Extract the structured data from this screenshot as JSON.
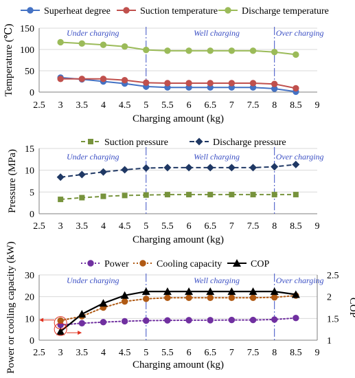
{
  "charts": [
    {
      "id": "temperature",
      "type": "line",
      "xlabel": "Charging amount (kg)",
      "ylabel": "Temperature (℃)",
      "xlim": [
        2.5,
        9
      ],
      "x_ticks": [
        "2.5",
        "3",
        "3.5",
        "4",
        "4.5",
        "5",
        "5.5",
        "6",
        "6.5",
        "7",
        "7.5",
        "8",
        "8.5",
        "9"
      ],
      "ylim": [
        0,
        150
      ],
      "y_ticks": [
        "0",
        "50",
        "100",
        "150"
      ],
      "zones": [
        "Under charging",
        "Well charging",
        "Over charging"
      ],
      "zone_boundaries": [
        5,
        8
      ],
      "series": [
        {
          "name": "Superheat degree",
          "color": "#4472c4",
          "marker": "circle",
          "x": [
            3,
            3.5,
            4,
            4.5,
            5,
            5.5,
            6,
            6.5,
            7,
            7.5,
            8,
            8.5
          ],
          "y": [
            34,
            30,
            25,
            20,
            13,
            11,
            11,
            11,
            11,
            11,
            8,
            1
          ]
        },
        {
          "name": "Suction temperature",
          "color": "#c0504d",
          "marker": "circle",
          "x": [
            3,
            3.5,
            4,
            4.5,
            5,
            5.5,
            6,
            6.5,
            7,
            7.5,
            8,
            8.5
          ],
          "y": [
            31,
            31,
            31,
            28,
            22,
            21,
            21,
            21,
            21,
            21,
            19,
            9
          ]
        },
        {
          "name": "Discharge temperature",
          "color": "#9bbb59",
          "marker": "circle",
          "x": [
            3,
            3.5,
            4,
            4.5,
            5,
            5.5,
            6,
            6.5,
            7,
            7.5,
            8,
            8.5
          ],
          "y": [
            117,
            114,
            111,
            107,
            99,
            97,
            97,
            97,
            97,
            97,
            94,
            88
          ]
        }
      ]
    },
    {
      "id": "pressure",
      "type": "line",
      "xlabel": "Charging amount (kg)",
      "ylabel": "Pressure (MPa)",
      "xlim": [
        2.5,
        9
      ],
      "x_ticks": [
        "2.5",
        "3",
        "3.5",
        "4",
        "4.5",
        "5",
        "5.5",
        "6",
        "6.5",
        "7",
        "7.5",
        "8",
        "8.5",
        "9"
      ],
      "ylim": [
        0,
        15
      ],
      "y_ticks": [
        "0",
        "5",
        "10",
        "15"
      ],
      "zones": [
        "Under charging",
        "Well charging",
        "Over charging"
      ],
      "zone_boundaries": [
        5,
        8
      ],
      "series": [
        {
          "name": "Suction pressure",
          "color": "#77933c",
          "marker": "square",
          "dash": "6,4",
          "x": [
            3,
            3.5,
            4,
            4.5,
            5,
            5.5,
            6,
            6.5,
            7,
            7.5,
            8,
            8.5
          ],
          "y": [
            3.3,
            3.7,
            4.0,
            4.2,
            4.3,
            4.4,
            4.4,
            4.4,
            4.4,
            4.4,
            4.4,
            4.4
          ]
        },
        {
          "name": "Discharge pressure",
          "color": "#1f3864",
          "marker": "diamond",
          "dash": "7,4",
          "x": [
            3,
            3.5,
            4,
            4.5,
            5,
            5.5,
            6,
            6.5,
            7,
            7.5,
            8,
            8.5
          ],
          "y": [
            8.4,
            9.0,
            9.6,
            10.1,
            10.5,
            10.6,
            10.6,
            10.6,
            10.6,
            10.6,
            10.8,
            11.3
          ]
        }
      ]
    },
    {
      "id": "performance",
      "type": "line",
      "xlabel": "Charging amount (kg)",
      "ylabel": "Power or cooling capacity (kW)",
      "y2label": "COP",
      "xlim": [
        2.5,
        9
      ],
      "x_ticks": [
        "2.5",
        "3",
        "3.5",
        "4",
        "4.5",
        "5",
        "5.5",
        "6",
        "6.5",
        "7",
        "7.5",
        "8",
        "8.5",
        "9"
      ],
      "ylim": [
        0,
        30
      ],
      "y_ticks": [
        "0",
        "10",
        "20",
        "30"
      ],
      "y2lim": [
        1,
        2.5
      ],
      "y2_ticks": [
        "1",
        "1.5",
        "2",
        "2.5"
      ],
      "zones": [
        "Under charging",
        "Well charging",
        "Over charging"
      ],
      "zone_boundaries": [
        5,
        8
      ],
      "series": [
        {
          "name": "Power",
          "color": "#7030a0",
          "marker": "circle",
          "dash": "2,3",
          "axis": "left",
          "x": [
            3,
            3.5,
            4,
            4.5,
            5,
            5.5,
            6,
            6.5,
            7,
            7.5,
            8,
            8.5
          ],
          "y": [
            7.0,
            7.8,
            8.3,
            8.7,
            9.0,
            9.1,
            9.2,
            9.2,
            9.3,
            9.3,
            9.5,
            10.2
          ]
        },
        {
          "name": "Cooling capacity",
          "color": "#b05a14",
          "marker": "circle",
          "dash": "2,3",
          "axis": "left",
          "x": [
            3,
            3.5,
            4,
            4.5,
            5,
            5.5,
            6,
            6.5,
            7,
            7.5,
            8,
            8.5
          ],
          "y": [
            9.0,
            11.0,
            15.0,
            17.8,
            19.0,
            19.5,
            19.5,
            19.5,
            19.5,
            19.5,
            19.7,
            20.5
          ]
        },
        {
          "name": "COP",
          "color": "#000000",
          "marker": "triangle",
          "axis": "right",
          "x": [
            3,
            3.5,
            4,
            4.5,
            5,
            5.5,
            6,
            6.5,
            7,
            7.5,
            8,
            8.5
          ],
          "y": [
            1.2,
            1.6,
            1.85,
            2.03,
            2.12,
            2.12,
            2.12,
            2.12,
            2.12,
            2.12,
            2.12,
            2.05
          ]
        }
      ]
    }
  ]
}
